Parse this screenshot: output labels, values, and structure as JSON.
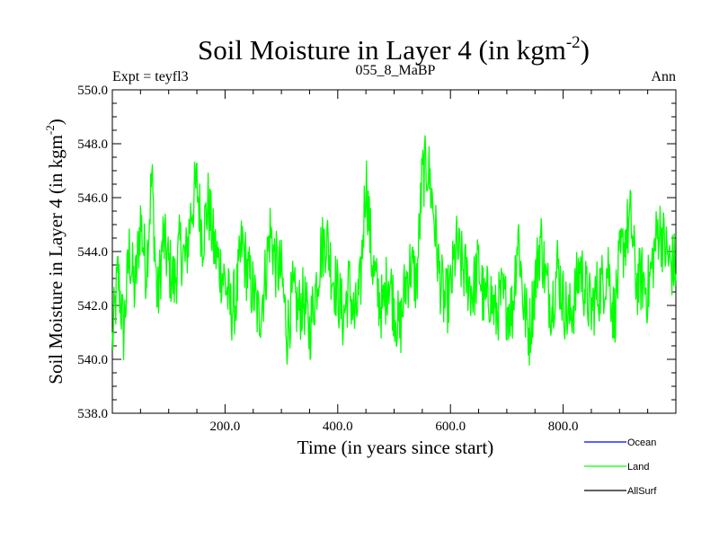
{
  "chart_data": {
    "type": "line",
    "title": "Soil Moisture in Layer 4 (in kgm",
    "title_sup": "-2",
    "title_close": ")",
    "subtitle_left": "Expt = teyfl3",
    "subtitle_center": "055_8_MaBP",
    "subtitle_right": "Ann",
    "xlabel": "Time (in years since start)",
    "ylabel": "Soil Moisture in Layer 4 (in kgm",
    "ylabel_sup": "-2",
    "ylabel_close": ")",
    "xlim": [
      0,
      1000
    ],
    "ylim": [
      538.0,
      550.0
    ],
    "x_ticks": [
      200,
      400,
      600,
      800
    ],
    "x_tick_labels": [
      "200.0",
      "400.0",
      "600.0",
      "800.0"
    ],
    "y_ticks": [
      538,
      540,
      542,
      544,
      546,
      548,
      550
    ],
    "y_tick_labels": [
      "538.0",
      "540.0",
      "542.0",
      "544.0",
      "546.0",
      "548.0",
      "550.0"
    ],
    "legend": [
      {
        "name": "Ocean",
        "color": "#0000ff"
      },
      {
        "name": "Land",
        "color": "#00ff00"
      },
      {
        "name": "AllSurf",
        "color": "#000000"
      }
    ],
    "series": [
      {
        "name": "Land",
        "color": "#00ff00",
        "x_start": 0,
        "x_step": 10,
        "values": [
          540.6,
          543.2,
          541.0,
          544.0,
          542.5,
          545.2,
          543.3,
          546.8,
          542.0,
          544.5,
          543.5,
          542.8,
          544.2,
          543.6,
          545.5,
          546.5,
          544.5,
          545.8,
          544.2,
          543.5,
          542.9,
          541.8,
          542.3,
          544.3,
          543.2,
          542.5,
          541.5,
          542.8,
          544.8,
          543.5,
          543.2,
          541.0,
          542.4,
          541.8,
          542.2,
          541.0,
          542.5,
          544.0,
          544.6,
          543.2,
          542.5,
          541.5,
          542.8,
          541.4,
          542.6,
          546.8,
          543.8,
          542.5,
          541.8,
          543.2,
          542.0,
          541.0,
          542.8,
          543.5,
          542.8,
          546.8,
          547.2,
          545.5,
          543.2,
          542.0,
          542.5,
          544.2,
          543.5,
          543.0,
          542.5,
          543.5,
          542.0,
          542.5,
          541.6,
          542.3,
          542.0,
          541.8,
          544.8,
          542.0,
          541.0,
          542.8,
          544.5,
          542.8,
          542.0,
          543.5,
          542.2,
          541.5,
          542.2,
          543.5,
          542.5,
          541.8,
          542.5,
          542.8,
          543.5,
          541.5,
          543.5,
          544.5,
          545.2,
          542.8,
          543.0,
          542.5,
          543.8,
          545.0,
          544.2,
          543.5
        ]
      }
    ]
  }
}
